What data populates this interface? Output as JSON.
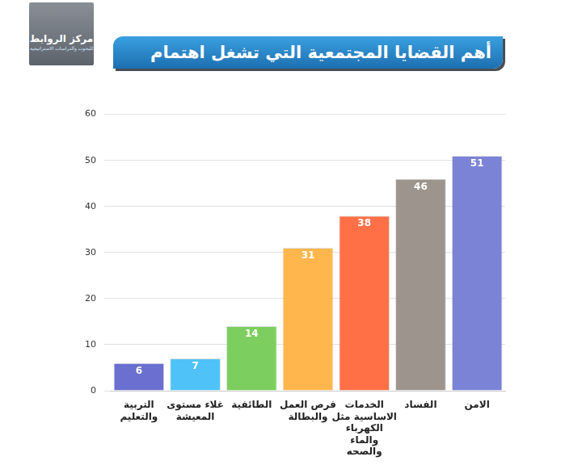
{
  "chart_data": {
    "type": "bar",
    "title": "أهم القضايا المجتمعية التي تشغل اهتمام المواطن العراقي",
    "annotations": [
      "مركز الروابط",
      "للبحوث والدراسات الاستراتيجية"
    ],
    "categories": [
      "التربية والتعليم",
      "غلاء مستوى المعيشة",
      "الطائفية",
      "فرص العمل والبطالة",
      "الخدمات الاساسية مثل الكهرباء والماء والصحه",
      "الفساد",
      "الامن"
    ],
    "values": [
      6,
      7,
      14,
      31,
      38,
      46,
      51
    ],
    "colors": [
      "#6b6fcf",
      "#4fc3f7",
      "#7ccf5e",
      "#ffb74d",
      "#ff7047",
      "#9c948d",
      "#7b83d6"
    ],
    "ylim": [
      0,
      60
    ],
    "yticks": [
      0,
      10,
      20,
      30,
      40,
      50,
      60
    ],
    "grid": true,
    "data_labels": true
  }
}
